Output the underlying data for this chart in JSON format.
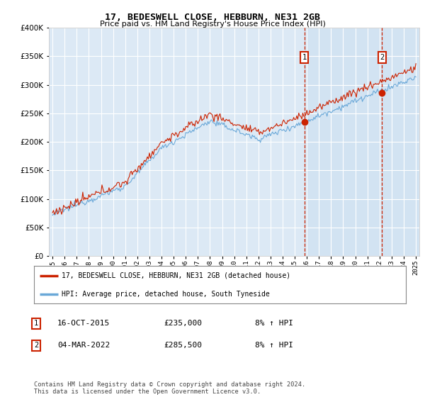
{
  "title": "17, BEDESWELL CLOSE, HEBBURN, NE31 2GB",
  "subtitle": "Price paid vs. HM Land Registry's House Price Index (HPI)",
  "hpi_label": "HPI: Average price, detached house, South Tyneside",
  "property_label": "17, BEDESWELL CLOSE, HEBBURN, NE31 2GB (detached house)",
  "purchase1_date": "16-OCT-2015",
  "purchase1_price": 235000,
  "purchase1_pct": "8%",
  "purchase2_date": "04-MAR-2022",
  "purchase2_price": 285500,
  "purchase2_pct": "8%",
  "footer": "Contains HM Land Registry data © Crown copyright and database right 2024.\nThis data is licensed under the Open Government Licence v3.0.",
  "background_color": "#ffffff",
  "plot_bg_color": "#dce9f5",
  "plot_bg_color2": "#cce0f0",
  "grid_color": "#ffffff",
  "hpi_line_color": "#6aa8d8",
  "property_line_color": "#cc2200",
  "marker_color": "#cc2200",
  "dashed_line_color": "#cc2200",
  "ylim": [
    0,
    400000
  ],
  "yticks": [
    0,
    50000,
    100000,
    150000,
    200000,
    250000,
    300000,
    350000,
    400000
  ],
  "start_year": 1995,
  "end_year": 2025
}
